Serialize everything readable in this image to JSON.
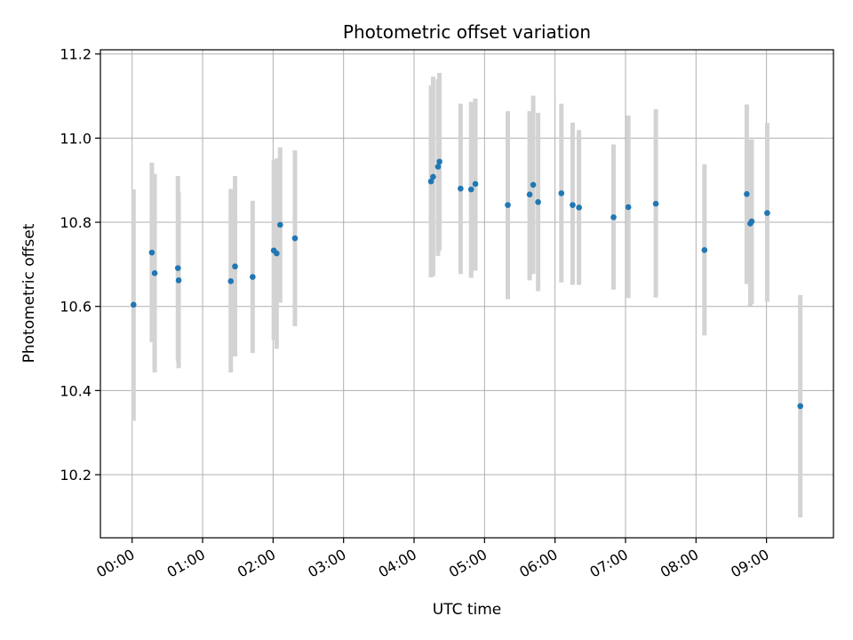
{
  "chart_data": {
    "type": "scatter",
    "title": "Photometric offset variation",
    "xlabel": "UTC time",
    "ylabel": "Photometric offset",
    "xlim": [
      -0.45,
      9.95
    ],
    "ylim": [
      10.05,
      11.21
    ],
    "x_ticks": [
      0,
      1,
      2,
      3,
      4,
      5,
      6,
      7,
      8,
      9
    ],
    "x_tick_labels": [
      "00:00",
      "01:00",
      "02:00",
      "03:00",
      "04:00",
      "05:00",
      "06:00",
      "07:00",
      "08:00",
      "09:00"
    ],
    "y_ticks": [
      10.2,
      10.4,
      10.6,
      10.8,
      11.0,
      11.2
    ],
    "y_tick_labels": [
      "10.2",
      "10.4",
      "10.6",
      "10.8",
      "11.0",
      "11.2"
    ],
    "grid": true,
    "point_color": "#1f77b4",
    "errorbar_color": "#d3d3d3",
    "x_units": "hours",
    "points": [
      {
        "x": 0.02,
        "y": 10.604,
        "lo": 10.328,
        "hi": 10.878
      },
      {
        "x": 0.28,
        "y": 10.728,
        "lo": 10.515,
        "hi": 10.942
      },
      {
        "x": 0.32,
        "y": 10.679,
        "lo": 10.443,
        "hi": 10.915
      },
      {
        "x": 0.65,
        "y": 10.691,
        "lo": 10.47,
        "hi": 10.91
      },
      {
        "x": 0.66,
        "y": 10.662,
        "lo": 10.453,
        "hi": 10.871
      },
      {
        "x": 1.4,
        "y": 10.66,
        "lo": 10.443,
        "hi": 10.879
      },
      {
        "x": 1.46,
        "y": 10.695,
        "lo": 10.481,
        "hi": 10.91
      },
      {
        "x": 1.71,
        "y": 10.67,
        "lo": 10.489,
        "hi": 10.851
      },
      {
        "x": 2.01,
        "y": 10.733,
        "lo": 10.52,
        "hi": 10.948
      },
      {
        "x": 2.05,
        "y": 10.726,
        "lo": 10.499,
        "hi": 10.952
      },
      {
        "x": 2.1,
        "y": 10.794,
        "lo": 10.609,
        "hi": 10.978
      },
      {
        "x": 2.31,
        "y": 10.762,
        "lo": 10.553,
        "hi": 10.971
      },
      {
        "x": 4.24,
        "y": 10.897,
        "lo": 10.669,
        "hi": 11.125
      },
      {
        "x": 4.27,
        "y": 10.908,
        "lo": 10.672,
        "hi": 11.146
      },
      {
        "x": 4.34,
        "y": 10.932,
        "lo": 10.72,
        "hi": 11.14
      },
      {
        "x": 4.36,
        "y": 10.944,
        "lo": 10.733,
        "hi": 11.155
      },
      {
        "x": 4.66,
        "y": 10.88,
        "lo": 10.677,
        "hi": 11.082
      },
      {
        "x": 4.81,
        "y": 10.878,
        "lo": 10.668,
        "hi": 11.086
      },
      {
        "x": 4.87,
        "y": 10.891,
        "lo": 10.685,
        "hi": 11.094
      },
      {
        "x": 5.33,
        "y": 10.841,
        "lo": 10.617,
        "hi": 11.064
      },
      {
        "x": 5.64,
        "y": 10.866,
        "lo": 10.662,
        "hi": 11.064
      },
      {
        "x": 5.69,
        "y": 10.889,
        "lo": 10.677,
        "hi": 11.101
      },
      {
        "x": 5.76,
        "y": 10.848,
        "lo": 10.636,
        "hi": 11.06
      },
      {
        "x": 6.09,
        "y": 10.869,
        "lo": 10.657,
        "hi": 11.082
      },
      {
        "x": 6.25,
        "y": 10.841,
        "lo": 10.651,
        "hi": 11.037
      },
      {
        "x": 6.34,
        "y": 10.835,
        "lo": 10.651,
        "hi": 11.019
      },
      {
        "x": 6.83,
        "y": 10.812,
        "lo": 10.64,
        "hi": 10.985
      },
      {
        "x": 7.04,
        "y": 10.836,
        "lo": 10.62,
        "hi": 11.054
      },
      {
        "x": 7.43,
        "y": 10.844,
        "lo": 10.621,
        "hi": 11.069
      },
      {
        "x": 8.12,
        "y": 10.734,
        "lo": 10.531,
        "hi": 10.938
      },
      {
        "x": 8.72,
        "y": 10.867,
        "lo": 10.653,
        "hi": 11.08
      },
      {
        "x": 8.77,
        "y": 10.797,
        "lo": 10.601,
        "hi": 10.995
      },
      {
        "x": 8.79,
        "y": 10.802,
        "lo": 10.606,
        "hi": 10.997
      },
      {
        "x": 9.01,
        "y": 10.822,
        "lo": 10.611,
        "hi": 11.036
      },
      {
        "x": 9.48,
        "y": 10.363,
        "lo": 10.098,
        "hi": 10.627
      }
    ]
  }
}
